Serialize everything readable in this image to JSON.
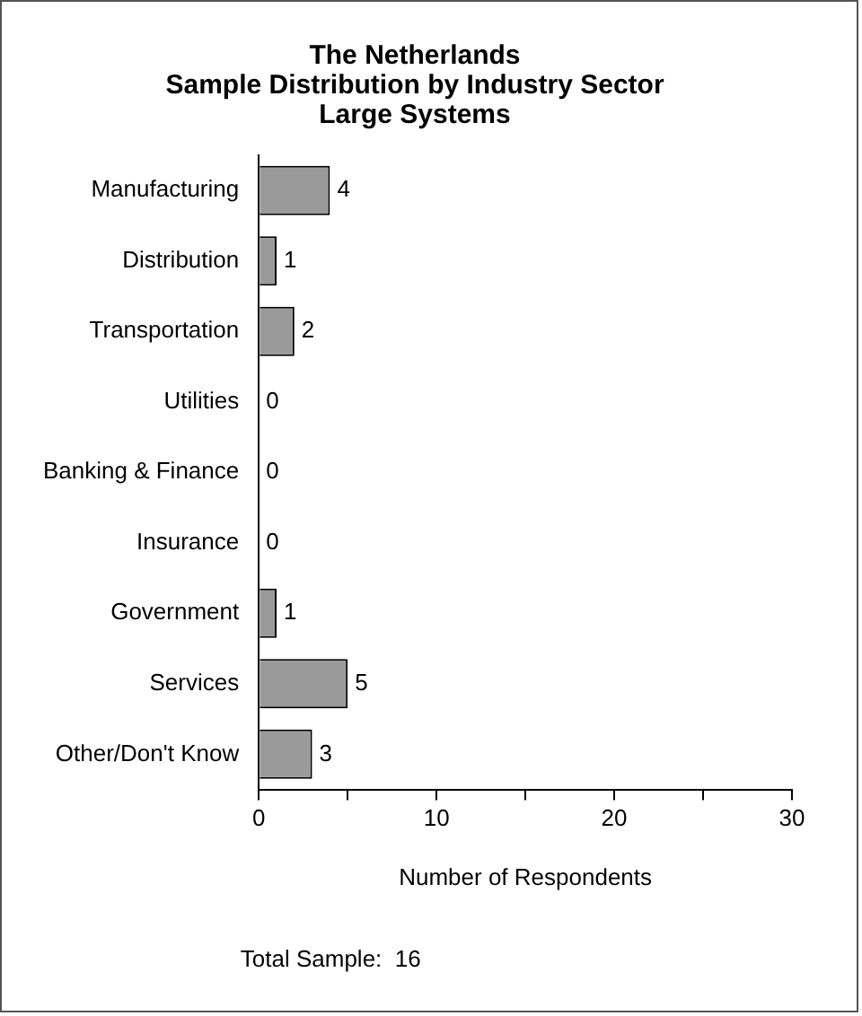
{
  "chart_data": {
    "type": "bar",
    "orientation": "horizontal",
    "title": "The Netherlands\nSample Distribution by Industry Sector\nLarge Systems",
    "categories": [
      "Manufacturing",
      "Distribution",
      "Transportation",
      "Utilities",
      "Banking & Finance",
      "Insurance",
      "Government",
      "Services",
      "Other/Don't Know"
    ],
    "values": [
      4,
      1,
      2,
      0,
      0,
      0,
      1,
      5,
      3
    ],
    "color": "#9a9a9a",
    "xlim": [
      0,
      30
    ],
    "xticks": [
      0,
      {
        "value": 5,
        "label": null
      },
      10,
      {
        "value": 15,
        "label": null
      },
      20,
      {
        "value": 25,
        "label": null
      },
      30
    ],
    "xlabel": "Number of Respondents",
    "data_labels": true,
    "grid": false,
    "legend": false,
    "annotations": [
      "Total Sample:  16"
    ]
  }
}
